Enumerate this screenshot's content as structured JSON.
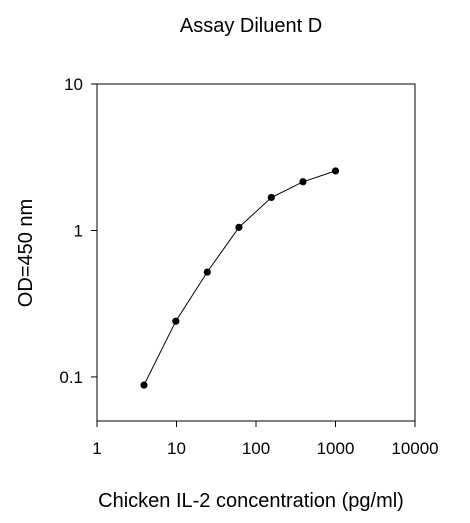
{
  "chart_data": {
    "type": "line",
    "title": "Assay Diluent D",
    "xlabel": "Chicken IL-2 concentration (pg/ml)",
    "ylabel": "OD=450 nm",
    "x_scale": "log",
    "y_scale": "log",
    "xlim": [
      1,
      10000
    ],
    "ylim": [
      0.05,
      10
    ],
    "x_ticks": [
      1,
      10,
      100,
      1000,
      10000
    ],
    "x_tick_labels": [
      "1",
      "10",
      "100",
      "1000",
      "10000"
    ],
    "y_ticks": [
      0.1,
      1,
      10
    ],
    "y_tick_labels": [
      "0.1",
      "1",
      "10"
    ],
    "grid": false,
    "legend": false,
    "line_color": "#000000",
    "marker_color": "#000000",
    "series": [
      {
        "x": [
          3.9,
          9.8,
          24.4,
          61,
          156,
          390,
          1000
        ],
        "y": [
          0.088,
          0.24,
          0.52,
          1.05,
          1.68,
          2.15,
          2.55
        ]
      }
    ]
  }
}
